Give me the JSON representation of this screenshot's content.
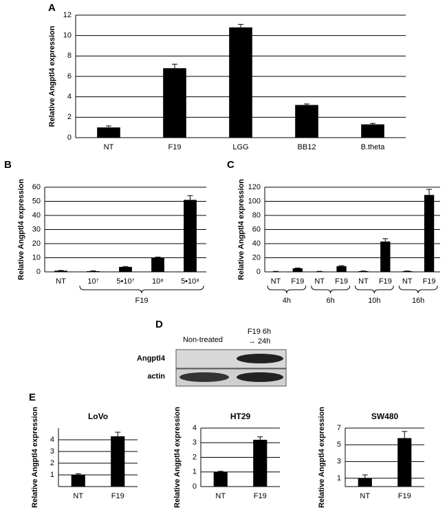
{
  "chart_data": [
    {
      "type": "bar",
      "panel": "A",
      "ylabel": "Relative Angptl4 expression",
      "categories": [
        "NT",
        "F19",
        "LGG",
        "BB12",
        "B.theta"
      ],
      "values": [
        1.0,
        6.8,
        10.8,
        3.2,
        1.3
      ],
      "errors": [
        0.15,
        0.4,
        0.3,
        0.1,
        0.1
      ],
      "color": "#000000",
      "ylim": [
        0,
        12
      ],
      "yticks": [
        0,
        2,
        4,
        6,
        8,
        10,
        12
      ],
      "grid": true
    },
    {
      "type": "bar",
      "panel": "B",
      "ylabel": "Relative Angptl4 expression",
      "categories": [
        "NT",
        "10⁷",
        "5•10⁷",
        "10⁸",
        "5•10⁸"
      ],
      "values": [
        0.8,
        0.5,
        3.5,
        10,
        51
      ],
      "errors": [
        0.2,
        0.2,
        0.3,
        0.5,
        3
      ],
      "groups": [
        {
          "name": "F19",
          "span": [
            1,
            4
          ]
        }
      ],
      "color": "#000000",
      "ylim": [
        0,
        60
      ],
      "yticks": [
        0,
        10,
        20,
        30,
        40,
        50,
        60
      ],
      "grid": true
    },
    {
      "type": "bar",
      "panel": "C",
      "ylabel": "Relative Angptl4 expression",
      "categories": [
        "NT",
        "F19",
        "NT",
        "F19",
        "NT",
        "F19",
        "NT",
        "F19"
      ],
      "values": [
        0.5,
        5,
        0.5,
        8,
        1,
        43,
        1,
        109
      ],
      "errors": [
        0.2,
        0.5,
        0.2,
        0.8,
        0.2,
        4,
        0.2,
        8
      ],
      "groups": [
        {
          "name": "4h",
          "span": [
            0,
            1
          ]
        },
        {
          "name": "6h",
          "span": [
            2,
            3
          ]
        },
        {
          "name": "10h",
          "span": [
            4,
            5
          ]
        },
        {
          "name": "16h",
          "span": [
            6,
            7
          ]
        }
      ],
      "color": "#000000",
      "ylim": [
        0,
        120
      ],
      "yticks": [
        0,
        20,
        40,
        60,
        80,
        100,
        120
      ],
      "grid": true
    },
    {
      "type": "bar",
      "panel": "E",
      "title": "LoVo",
      "ylabel": "Relative Angptl4 expression",
      "categories": [
        "NT",
        "F19"
      ],
      "values": [
        1.0,
        4.3
      ],
      "errors": [
        0.1,
        0.35
      ],
      "color": "#000000",
      "ylim": [
        0,
        5
      ],
      "yticks": [
        1,
        2,
        3,
        4
      ],
      "grid": true
    },
    {
      "type": "bar",
      "title": "HT29",
      "ylabel": "Relative Angptl4 expression",
      "categories": [
        "NT",
        "F19"
      ],
      "values": [
        1.0,
        3.2
      ],
      "errors": [
        0.05,
        0.2
      ],
      "color": "#000000",
      "ylim": [
        0,
        4
      ],
      "yticks": [
        0,
        1,
        2,
        3,
        4
      ],
      "grid": true
    },
    {
      "type": "bar",
      "title": "SW480",
      "ylabel": "Relative Angptl4 expression",
      "categories": [
        "NT",
        "F19"
      ],
      "values": [
        1.0,
        5.8
      ],
      "errors": [
        0.4,
        0.8
      ],
      "color": "#000000",
      "ylim": [
        0,
        7
      ],
      "yticks": [
        1,
        3,
        5,
        7
      ],
      "grid": true
    }
  ],
  "blot": {
    "panel": "D",
    "columns": [
      [
        "Non-treated"
      ],
      [
        "F19 6h",
        "→ 24h"
      ]
    ],
    "rows": [
      "Angptl4",
      "actin"
    ]
  }
}
